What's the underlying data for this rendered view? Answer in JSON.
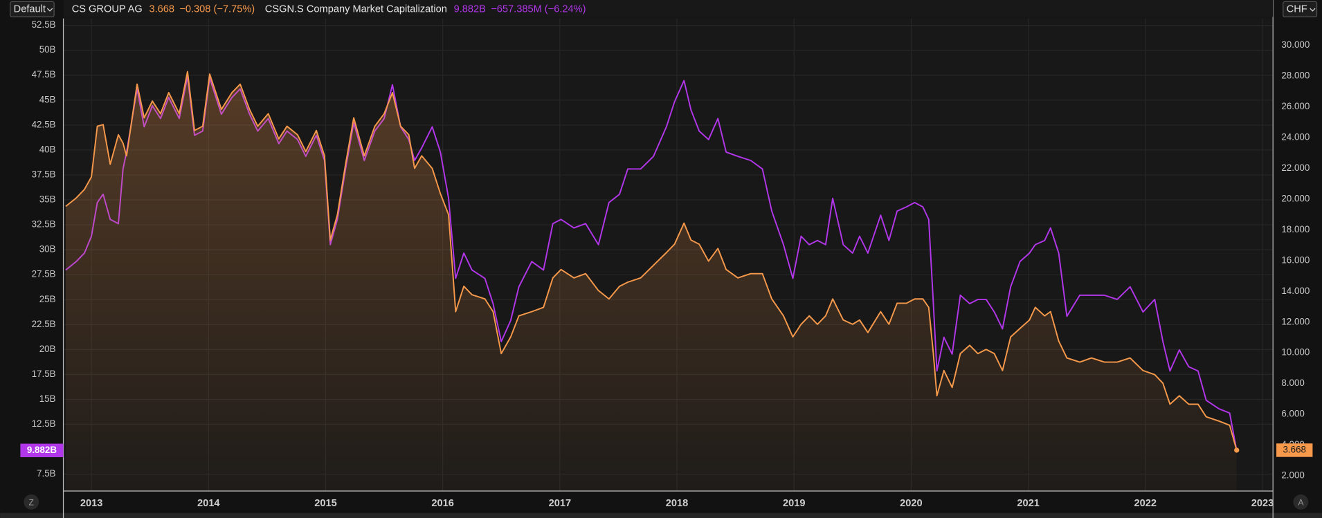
{
  "controls": {
    "layout": "Default",
    "currency": "CHF",
    "left_button": "Z",
    "right_button": "A"
  },
  "chart_data": {
    "type": "line",
    "x": [
      2012.78,
      2012.87,
      2012.94,
      2013.0,
      2013.05,
      2013.1,
      2013.16,
      2013.23,
      2013.27,
      2013.3,
      2013.39,
      2013.45,
      2013.52,
      2013.59,
      2013.66,
      2013.75,
      2013.82,
      2013.88,
      2013.95,
      2014.01,
      2014.11,
      2014.2,
      2014.27,
      2014.35,
      2014.42,
      2014.51,
      2014.6,
      2014.67,
      2014.76,
      2014.83,
      2014.92,
      2014.99,
      2015.04,
      2015.1,
      2015.17,
      2015.24,
      2015.33,
      2015.42,
      2015.5,
      2015.57,
      2015.64,
      2015.71,
      2015.76,
      2015.82,
      2015.91,
      2015.98,
      2016.05,
      2016.11,
      2016.18,
      2016.25,
      2016.36,
      2016.43,
      2016.5,
      2016.58,
      2016.65,
      2016.76,
      2016.86,
      2016.94,
      2017.01,
      2017.12,
      2017.22,
      2017.33,
      2017.42,
      2017.51,
      2017.58,
      2017.69,
      2017.8,
      2017.91,
      2017.98,
      2018.06,
      2018.12,
      2018.19,
      2018.27,
      2018.35,
      2018.42,
      2018.52,
      2018.63,
      2018.73,
      2018.81,
      2018.91,
      2018.99,
      2019.06,
      2019.13,
      2019.2,
      2019.27,
      2019.33,
      2019.42,
      2019.5,
      2019.56,
      2019.63,
      2019.74,
      2019.81,
      2019.88,
      2019.96,
      2020.03,
      2020.1,
      2020.15,
      2020.19,
      2020.22,
      2020.28,
      2020.35,
      2020.42,
      2020.5,
      2020.57,
      2020.64,
      2020.71,
      2020.78,
      2020.85,
      2020.93,
      2021.01,
      2021.06,
      2021.14,
      2021.19,
      2021.26,
      2021.33,
      2021.44,
      2021.54,
      2021.65,
      2021.76,
      2021.87,
      2021.98,
      2022.08,
      2022.15,
      2022.21,
      2022.29,
      2022.37,
      2022.45,
      2022.52,
      2022.63,
      2022.72,
      2022.78
    ],
    "series": [
      {
        "name": "CSGN.S Company Market Capitalization",
        "color": "#b236ea",
        "axis": "y",
        "last_value_label": "9.882B",
        "change_label": "−657.385M (−6.24%)",
        "values": [
          27.97,
          28.82,
          29.66,
          31.35,
          34.73,
          35.57,
          33.04,
          32.62,
          38.1,
          39.79,
          46.12,
          42.32,
          44.43,
          43.16,
          45.27,
          43.16,
          47.38,
          41.48,
          41.9,
          47.22,
          43.59,
          45.27,
          46.12,
          43.59,
          41.9,
          43.16,
          40.63,
          41.9,
          41.05,
          39.37,
          41.48,
          38.95,
          30.51,
          33.04,
          38.1,
          42.74,
          38.95,
          41.9,
          43.16,
          46.54,
          42.32,
          41.05,
          38.95,
          40.21,
          42.32,
          39.79,
          35.15,
          27.13,
          29.66,
          27.97,
          27.13,
          24.6,
          20.8,
          22.91,
          26.29,
          28.82,
          27.97,
          32.62,
          33.04,
          32.19,
          32.62,
          30.51,
          34.73,
          35.57,
          38.1,
          38.1,
          39.37,
          42.32,
          44.85,
          46.96,
          44.01,
          41.9,
          41.05,
          43.16,
          39.79,
          39.37,
          38.95,
          38.1,
          33.88,
          30.51,
          27.13,
          31.35,
          30.51,
          30.93,
          30.51,
          35.15,
          30.51,
          29.66,
          31.35,
          29.66,
          33.46,
          30.93,
          33.88,
          34.3,
          34.73,
          34.3,
          33.04,
          24.6,
          17.85,
          21.22,
          19.54,
          25.44,
          24.6,
          25.02,
          25.02,
          23.76,
          22.07,
          26.29,
          28.82,
          29.66,
          30.51,
          30.93,
          32.19,
          29.66,
          23.33,
          25.44,
          25.44,
          25.44,
          25.02,
          26.29,
          23.76,
          25.02,
          20.8,
          17.85,
          19.96,
          18.27,
          17.85,
          14.9,
          14.05,
          13.63,
          9.882
        ]
      },
      {
        "name": "CS GROUP AG",
        "color": "#f7994b",
        "axis": "y2",
        "last_value_label": "3.668",
        "change_label": "−0.308 (−7.75%)",
        "values": [
          19.53,
          20.08,
          20.63,
          21.45,
          24.74,
          24.85,
          22.27,
          24.19,
          23.64,
          22.82,
          27.48,
          25.29,
          26.38,
          25.56,
          26.93,
          25.56,
          28.3,
          24.47,
          24.74,
          28.14,
          25.84,
          26.93,
          27.48,
          25.84,
          24.74,
          25.56,
          23.92,
          24.74,
          24.19,
          23.1,
          24.47,
          22.82,
          17.34,
          18.99,
          22.27,
          25.29,
          22.82,
          24.74,
          25.56,
          26.93,
          24.74,
          24.19,
          22.0,
          22.82,
          22.0,
          20.36,
          18.99,
          12.68,
          14.33,
          13.78,
          13.51,
          12.68,
          9.95,
          11.04,
          12.41,
          12.68,
          12.96,
          14.88,
          15.42,
          14.88,
          15.15,
          14.05,
          13.51,
          14.33,
          14.6,
          14.88,
          15.7,
          16.52,
          17.07,
          18.44,
          17.34,
          17.07,
          15.97,
          16.79,
          15.42,
          14.88,
          15.15,
          15.15,
          13.51,
          12.41,
          11.04,
          11.86,
          12.41,
          11.86,
          12.41,
          13.51,
          12.14,
          11.86,
          12.14,
          11.32,
          12.68,
          11.86,
          13.23,
          13.23,
          13.51,
          13.51,
          12.96,
          9.95,
          7.21,
          8.85,
          7.75,
          9.95,
          10.49,
          9.95,
          10.22,
          9.95,
          8.85,
          11.04,
          11.59,
          12.14,
          12.96,
          12.41,
          12.68,
          10.77,
          9.67,
          9.4,
          9.67,
          9.4,
          9.4,
          9.67,
          8.85,
          8.58,
          8.03,
          6.66,
          7.21,
          6.66,
          6.66,
          5.84,
          5.56,
          5.29,
          3.668
        ]
      }
    ],
    "xlim": [
      2012.76,
      2023.09
    ],
    "xticks": [
      2013,
      2014,
      2015,
      2016,
      2017,
      2018,
      2019,
      2020,
      2021,
      2022,
      2023
    ],
    "ylim": [
      5.81,
      53.18
    ],
    "yticks": [
      {
        "value": 7.5,
        "label": "7.5B"
      },
      {
        "value": 12.5,
        "label": "12.5B"
      },
      {
        "value": 15,
        "label": "15B"
      },
      {
        "value": 17.5,
        "label": "17.5B"
      },
      {
        "value": 20,
        "label": "20B"
      },
      {
        "value": 22.5,
        "label": "22.5B"
      },
      {
        "value": 25,
        "label": "25B"
      },
      {
        "value": 27.5,
        "label": "27.5B"
      },
      {
        "value": 30,
        "label": "30B"
      },
      {
        "value": 32.5,
        "label": "32.5B"
      },
      {
        "value": 35,
        "label": "35B"
      },
      {
        "value": 37.5,
        "label": "37.5B"
      },
      {
        "value": 40,
        "label": "40B"
      },
      {
        "value": 42.5,
        "label": "42.5B"
      },
      {
        "value": 45,
        "label": "45B"
      },
      {
        "value": 47.5,
        "label": "47.5B"
      },
      {
        "value": 50,
        "label": "50B"
      },
      {
        "value": 52.5,
        "label": "52.5B"
      }
    ],
    "y2lim": [
      1.01,
      31.75
    ],
    "y2ticks": [
      {
        "value": 2,
        "label": "2.000"
      },
      {
        "value": 4,
        "label": "4.000"
      },
      {
        "value": 6,
        "label": "6.000"
      },
      {
        "value": 8,
        "label": "8.000"
      },
      {
        "value": 10,
        "label": "10.000"
      },
      {
        "value": 12,
        "label": "12.000"
      },
      {
        "value": 14,
        "label": "14.000"
      },
      {
        "value": 16,
        "label": "16.000"
      },
      {
        "value": 18,
        "label": "18.000"
      },
      {
        "value": 20,
        "label": "20.000"
      },
      {
        "value": 22,
        "label": "22.000"
      },
      {
        "value": 24,
        "label": "24.000"
      },
      {
        "value": 26,
        "label": "26.000"
      },
      {
        "value": 28,
        "label": "28.000"
      },
      {
        "value": 30,
        "label": "30.000"
      }
    ],
    "grid": true
  }
}
